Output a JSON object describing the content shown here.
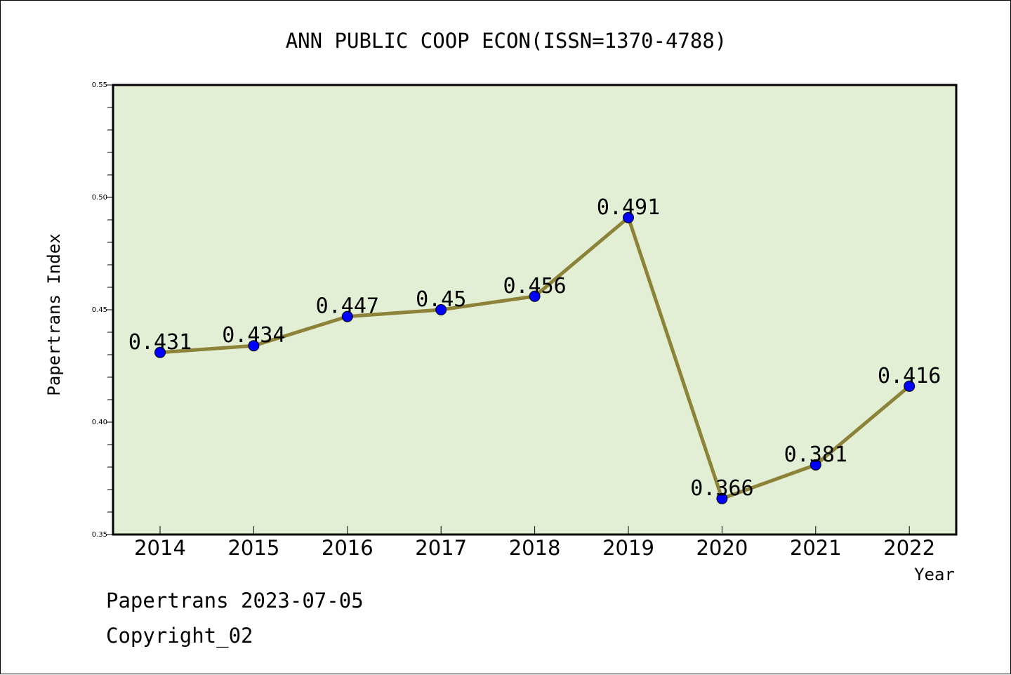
{
  "chart_data": {
    "type": "line",
    "title": "ANN PUBLIC COOP ECON(ISSN=1370-4788)",
    "xlabel": "Year",
    "ylabel": "Papertrans Index",
    "categories": [
      "2014",
      "2015",
      "2016",
      "2017",
      "2018",
      "2019",
      "2020",
      "2021",
      "2022"
    ],
    "values": [
      0.431,
      0.434,
      0.447,
      0.45,
      0.456,
      0.491,
      0.366,
      0.381,
      0.416
    ],
    "data_labels": [
      "0.431",
      "0.434",
      "0.447",
      "0.45",
      "0.456",
      "0.491",
      "0.366",
      "0.381",
      "0.416"
    ],
    "ylim": [
      0.35,
      0.55
    ],
    "yticks": [
      0.35,
      0.4,
      0.45,
      0.5,
      0.55
    ],
    "ytick_labels": [
      "0.35",
      "0.40",
      "0.45",
      "0.50",
      "0.55"
    ],
    "grid": false,
    "colors": {
      "plot_background": "#e2efd4",
      "line": "#8c8238",
      "marker": "#0000ff"
    }
  },
  "footer": {
    "source": "Papertrans 2023-07-05",
    "copyright": "Copyright_02"
  }
}
